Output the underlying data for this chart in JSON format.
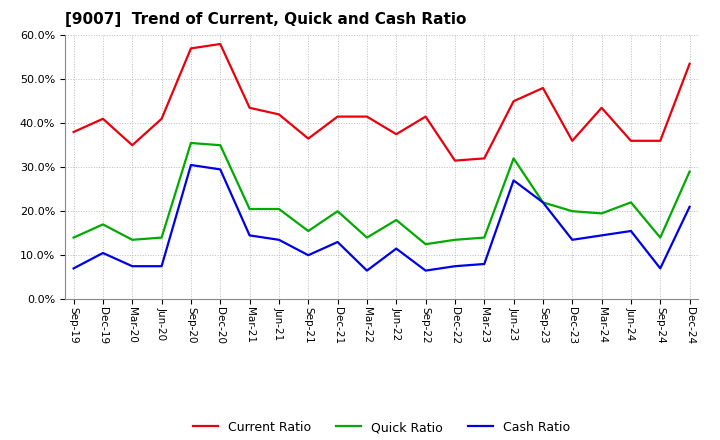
{
  "title": "[9007]  Trend of Current, Quick and Cash Ratio",
  "labels": [
    "Sep-19",
    "Dec-19",
    "Mar-20",
    "Jun-20",
    "Sep-20",
    "Dec-20",
    "Mar-21",
    "Jun-21",
    "Sep-21",
    "Dec-21",
    "Mar-22",
    "Jun-22",
    "Sep-22",
    "Dec-22",
    "Mar-23",
    "Jun-23",
    "Sep-23",
    "Dec-23",
    "Mar-24",
    "Jun-24",
    "Sep-24",
    "Dec-24"
  ],
  "current_ratio": [
    38.0,
    41.0,
    35.0,
    41.0,
    57.0,
    58.0,
    43.5,
    42.0,
    36.5,
    41.5,
    41.5,
    37.5,
    41.5,
    31.5,
    32.0,
    45.0,
    48.0,
    36.0,
    43.5,
    36.0,
    36.0,
    53.5
  ],
  "quick_ratio": [
    14.0,
    17.0,
    13.5,
    14.0,
    35.5,
    35.0,
    20.5,
    20.5,
    15.5,
    20.0,
    14.0,
    18.0,
    12.5,
    13.5,
    14.0,
    32.0,
    22.0,
    20.0,
    19.5,
    22.0,
    14.0,
    29.0
  ],
  "cash_ratio": [
    7.0,
    10.5,
    7.5,
    7.5,
    30.5,
    29.5,
    14.5,
    13.5,
    10.0,
    13.0,
    6.5,
    11.5,
    6.5,
    7.5,
    8.0,
    27.0,
    22.0,
    13.5,
    14.5,
    15.5,
    7.0,
    21.0
  ],
  "current_color": "#e8000d",
  "quick_color": "#00aa00",
  "cash_color": "#0000e8",
  "ylim": [
    0,
    60
  ],
  "yticks": [
    0,
    10,
    20,
    30,
    40,
    50,
    60
  ],
  "background_color": "#ffffff",
  "grid_color": "#bbbbbb"
}
